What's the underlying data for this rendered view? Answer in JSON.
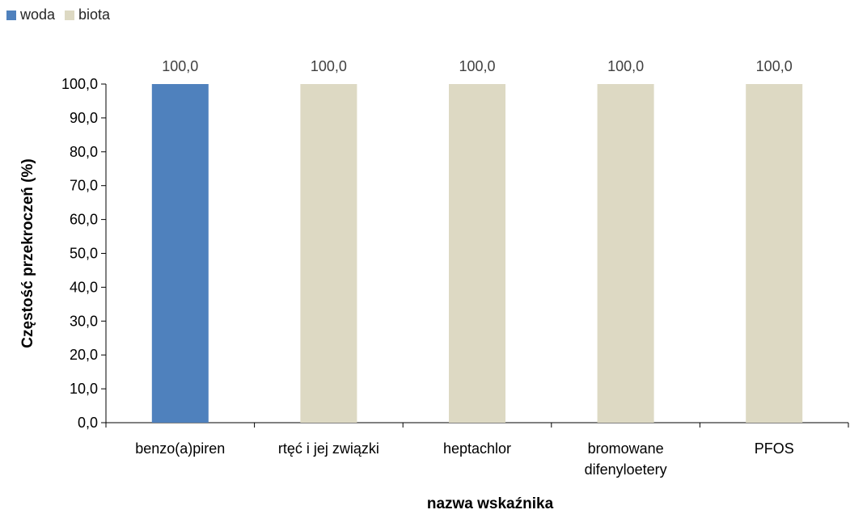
{
  "chart_data": {
    "type": "bar",
    "categories": [
      [
        "benzo(a)piren"
      ],
      [
        "rtęć i jej związki"
      ],
      [
        "heptachlor"
      ],
      [
        "bromowane",
        "difenyloetery"
      ],
      [
        "PFOS"
      ]
    ],
    "series": [
      {
        "name": "woda",
        "color": "#4f81bd",
        "values": [
          100.0,
          null,
          null,
          null,
          null
        ]
      },
      {
        "name": "biota",
        "color": "#ddd9c3",
        "values": [
          null,
          100.0,
          100.0,
          100.0,
          100.0
        ]
      }
    ],
    "data_labels": [
      "100,0",
      "100,0",
      "100,0",
      "100,0",
      "100,0"
    ],
    "xlabel": "nazwa wskaźnika",
    "ylabel": "Częstość przekroczeń (%)",
    "ylim": [
      0,
      100
    ],
    "yticks": [
      "0,0",
      "10,0",
      "20,0",
      "30,0",
      "40,0",
      "50,0",
      "60,0",
      "70,0",
      "80,0",
      "90,0",
      "100,0"
    ],
    "legend_position": "top-left",
    "grid": false
  }
}
